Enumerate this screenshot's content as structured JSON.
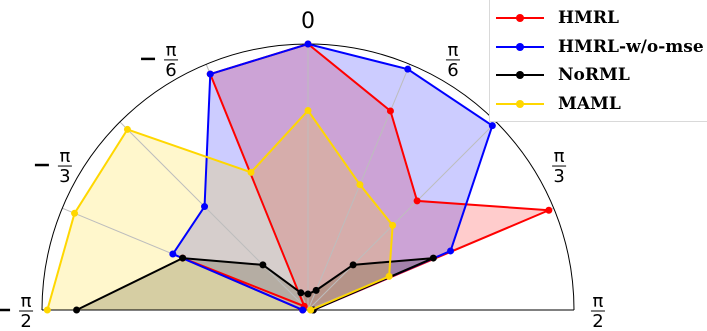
{
  "chart_data": {
    "type": "radar",
    "angle_unit": "radians",
    "theta_range": [
      "-π/2",
      "π/2"
    ],
    "radial_range": [
      0,
      1
    ],
    "grid": true,
    "legend_position": "top-right",
    "theta_tick_labels": [
      {
        "num": "π",
        "den": "2",
        "neg": true
      },
      {
        "num": "π",
        "den": "3",
        "neg": true
      },
      {
        "num": "π",
        "den": "6",
        "neg": true
      },
      {
        "num": "",
        "den": "",
        "neg": false,
        "text": "0"
      },
      {
        "num": "π",
        "den": "6",
        "neg": false
      },
      {
        "num": "π",
        "den": "3",
        "neg": false
      },
      {
        "num": "π",
        "den": "2",
        "neg": false
      }
    ],
    "axes_angles_deg": [
      -90,
      -67.5,
      -45,
      -22.5,
      0,
      22.5,
      45,
      67.5,
      90
    ],
    "series": [
      {
        "name": "HMRL",
        "color": "#ff0000",
        "fill": "#ff0000",
        "values": [
          0.02,
          0.51,
          0.02,
          0.96,
          1.0,
          0.81,
          0.58,
          0.98,
          0.02
        ]
      },
      {
        "name": "HMRL-w/o-mse",
        "color": "#0000ff",
        "fill": "#0000ff",
        "values": [
          0.02,
          0.55,
          0.55,
          0.96,
          1.0,
          0.98,
          0.98,
          0.58,
          0.02
        ]
      },
      {
        "name": "NoRML",
        "color": "#000000",
        "fill": "#000000",
        "values": [
          0.87,
          0.51,
          0.24,
          0.07,
          0.06,
          0.08,
          0.24,
          0.51,
          0.02
        ]
      },
      {
        "name": "MAML",
        "color": "#ffd700",
        "fill": "#ffd700",
        "values": [
          0.98,
          0.95,
          0.96,
          0.56,
          0.75,
          0.51,
          0.45,
          0.33,
          0.01
        ]
      }
    ]
  },
  "legend": {
    "items": [
      {
        "label": "HMRL",
        "color": "#ff0000"
      },
      {
        "label": "HMRL-w/o-mse",
        "color": "#0000ff"
      },
      {
        "label": "NoRML",
        "color": "#000000"
      },
      {
        "label": "MAML",
        "color": "#ffd700"
      }
    ]
  }
}
